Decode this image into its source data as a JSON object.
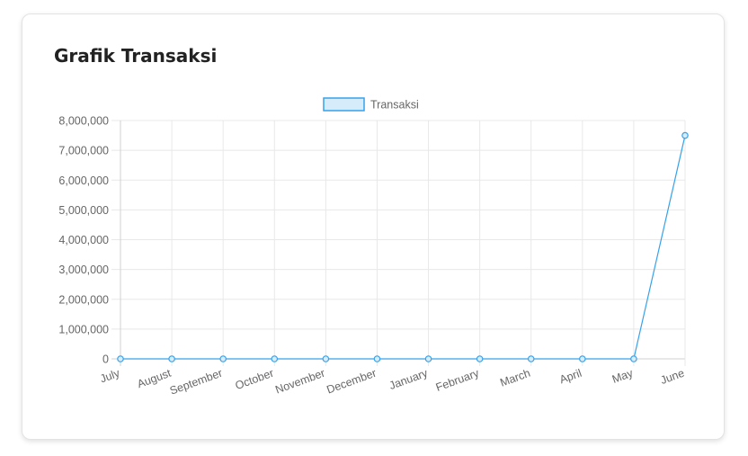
{
  "card": {
    "title": "Grafik Transaksi"
  },
  "chart_data": {
    "type": "line",
    "categories": [
      "July",
      "August",
      "September",
      "October",
      "November",
      "December",
      "January",
      "February",
      "March",
      "April",
      "May",
      "June"
    ],
    "series": [
      {
        "name": "Transaksi",
        "values": [
          0,
          0,
          0,
          0,
          0,
          0,
          0,
          0,
          0,
          0,
          0,
          7500000
        ],
        "color": "#36a2eb",
        "fill": "#d6ecfb"
      }
    ],
    "yticks": [
      "0",
      "1,000,000",
      "2,000,000",
      "3,000,000",
      "4,000,000",
      "5,000,000",
      "6,000,000",
      "7,000,000",
      "8,000,000"
    ],
    "ylim": [
      0,
      8000000
    ],
    "grid": true,
    "legend_position": "top"
  }
}
